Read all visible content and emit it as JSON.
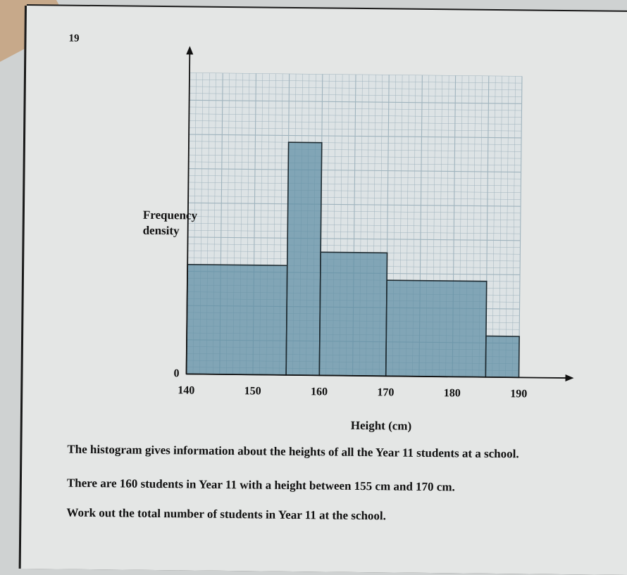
{
  "question_number": "19",
  "question": {
    "line1": "The histogram gives information about the heights of all the Year 11 students at a school.",
    "line2": "There are 160 students in Year 11 with a height between 155 cm and 170 cm.",
    "line3": "Work out the total number of students in Year 11 at the school."
  },
  "chart_data": {
    "type": "bar",
    "variant": "histogram",
    "xlabel": "Height (cm)",
    "ylabel": "Frequency density",
    "x_ticks": [
      "140",
      "150",
      "160",
      "170",
      "180",
      "190"
    ],
    "y_ticks": [
      "0"
    ],
    "xlim": [
      140,
      190
    ],
    "ylim": [
      0,
      22
    ],
    "grid": true,
    "bins": [
      {
        "from": 140,
        "to": 155,
        "height": 8
      },
      {
        "from": 155,
        "to": 160,
        "height": 17
      },
      {
        "from": 160,
        "to": 170,
        "height": 9
      },
      {
        "from": 170,
        "to": 185,
        "height": 7
      },
      {
        "from": 185,
        "to": 190,
        "height": 3
      }
    ],
    "colors": {
      "bar": "#5d8ea3",
      "grid": "#9fb3bd",
      "axis": "#111111"
    }
  }
}
